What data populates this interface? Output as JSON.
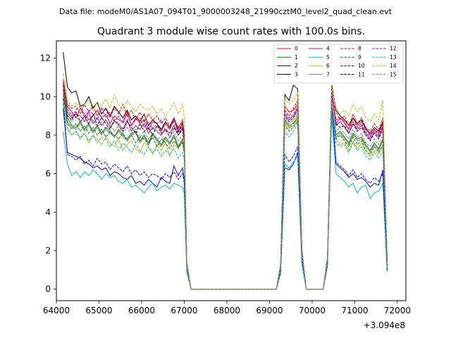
{
  "chart_data": {
    "type": "line",
    "subtitle": "Data file: modeM0/AS1A07_094T01_9000003248_21990cztM0_level2_quad_clean.evt",
    "title": "Quadrant 3 module wise count rates with 100.0s bins.",
    "xlabel": "",
    "ylabel": "",
    "x_offset_label": "+3.094e8",
    "xlim": [
      64000,
      72200
    ],
    "ylim": [
      -0.6,
      12.9
    ],
    "x_ticks": [
      64000,
      65000,
      66000,
      67000,
      68000,
      69000,
      70000,
      71000,
      72000
    ],
    "y_ticks": [
      0,
      2,
      4,
      6,
      8,
      10,
      12
    ],
    "grid": false,
    "legend": {
      "placement": "top-right",
      "columns": 4
    },
    "x": [
      64160,
      64260,
      64360,
      64460,
      64560,
      64660,
      64760,
      64860,
      64960,
      65060,
      65160,
      65260,
      65360,
      65460,
      65560,
      65660,
      65760,
      65860,
      65960,
      66060,
      66160,
      66260,
      66360,
      66460,
      66560,
      66660,
      66760,
      66860,
      66960,
      67000,
      67060,
      67160,
      69160,
      69260,
      69360,
      69460,
      69560,
      69660,
      69760,
      69860,
      70260,
      70360,
      70460,
      70560,
      70660,
      70760,
      70860,
      70960,
      71060,
      71160,
      71260,
      71360,
      71460,
      71560,
      71660,
      71760
    ],
    "series": [
      {
        "name": "0",
        "color": "#ff0000",
        "dash": "solid",
        "values": [
          10.9,
          9.5,
          9.2,
          8.9,
          9.4,
          9.1,
          8.8,
          9.0,
          9.3,
          8.9,
          9.1,
          8.6,
          9.0,
          8.8,
          8.7,
          9.2,
          8.5,
          8.9,
          8.6,
          8.8,
          8.3,
          8.7,
          8.6,
          8.2,
          8.6,
          8.3,
          8.8,
          8.4,
          8.7,
          8.0,
          1.3,
          0,
          0,
          1.2,
          9.5,
          9.2,
          9.3,
          9.6,
          2.0,
          0,
          0,
          1.6,
          10.2,
          8.6,
          8.9,
          8.7,
          8.3,
          8.9,
          8.5,
          8.7,
          8.4,
          8.0,
          8.3,
          8.1,
          8.6,
          1.5
        ]
      },
      {
        "name": "1",
        "color": "#008000",
        "dash": "solid",
        "values": [
          10.4,
          8.9,
          8.5,
          8.4,
          8.7,
          8.3,
          8.6,
          8.2,
          8.5,
          8.1,
          8.4,
          8.2,
          7.9,
          8.3,
          8.0,
          7.8,
          8.1,
          8.2,
          7.7,
          8.0,
          7.6,
          8.1,
          7.8,
          7.5,
          7.9,
          7.6,
          8.0,
          7.4,
          7.8,
          7.3,
          1.2,
          0,
          0,
          1.1,
          8.8,
          8.5,
          8.6,
          8.9,
          1.8,
          0,
          0,
          1.5,
          9.5,
          8.0,
          8.2,
          7.9,
          7.6,
          8.1,
          7.8,
          7.9,
          7.5,
          7.2,
          7.6,
          7.3,
          7.8,
          1.3
        ]
      },
      {
        "name": "2",
        "color": "#0000ff",
        "dash": "solid",
        "values": [
          9.4,
          7.1,
          7.0,
          6.9,
          6.8,
          6.6,
          6.5,
          6.3,
          6.4,
          6.2,
          6.3,
          5.9,
          6.1,
          6.0,
          5.8,
          5.7,
          5.9,
          5.5,
          5.6,
          5.4,
          5.7,
          5.5,
          5.3,
          5.8,
          5.6,
          5.5,
          6.4,
          5.9,
          6.3,
          5.7,
          1.0,
          0,
          0,
          0.9,
          6.3,
          6.2,
          6.5,
          7.1,
          1.5,
          0,
          0,
          1.3,
          9.4,
          6.5,
          6.3,
          6.1,
          5.8,
          6.0,
          5.7,
          5.8,
          5.6,
          5.3,
          5.5,
          5.4,
          6.2,
          1.0
        ]
      },
      {
        "name": "3",
        "color": "#000000",
        "dash": "solid",
        "values": [
          12.3,
          10.5,
          10.2,
          10.3,
          9.5,
          9.6,
          10.0,
          9.4,
          9.7,
          9.1,
          9.4,
          9.0,
          9.5,
          9.2,
          8.9,
          9.3,
          8.8,
          9.0,
          8.7,
          9.1,
          8.5,
          8.8,
          8.6,
          8.3,
          8.7,
          8.4,
          8.9,
          8.2,
          8.6,
          8.0,
          1.4,
          0,
          0,
          1.3,
          10.1,
          9.8,
          10.6,
          10.4,
          2.1,
          0,
          0,
          1.7,
          10.6,
          9.3,
          9.0,
          8.8,
          8.5,
          8.9,
          8.6,
          8.8,
          8.3,
          8.1,
          8.4,
          8.2,
          8.7,
          1.6
        ]
      },
      {
        "name": "4",
        "color": "#bf00bf",
        "dash": "solid",
        "values": [
          10.8,
          9.2,
          8.9,
          9.1,
          9.0,
          8.7,
          9.2,
          8.6,
          8.9,
          8.5,
          8.8,
          8.4,
          8.7,
          8.6,
          8.3,
          8.8,
          8.2,
          8.5,
          8.3,
          8.6,
          8.1,
          8.4,
          8.2,
          8.0,
          8.3,
          8.1,
          8.5,
          8.0,
          8.4,
          7.8,
          1.3,
          0,
          0,
          1.2,
          9.1,
          8.8,
          9.0,
          9.4,
          1.9,
          0,
          0,
          1.6,
          10.3,
          8.5,
          8.7,
          8.4,
          8.1,
          8.6,
          8.3,
          8.5,
          8.1,
          7.8,
          8.2,
          7.9,
          8.4,
          1.4
        ]
      },
      {
        "name": "5",
        "color": "#00bfbf",
        "dash": "solid",
        "values": [
          8.2,
          6.5,
          5.9,
          6.1,
          5.8,
          6.1,
          5.9,
          6.2,
          6.0,
          5.7,
          6.0,
          5.8,
          5.9,
          5.6,
          5.5,
          5.7,
          5.3,
          5.4,
          5.2,
          5.0,
          5.3,
          5.5,
          5.1,
          5.3,
          5.4,
          5.2,
          5.5,
          5.4,
          5.3,
          5.0,
          0.9,
          0,
          0,
          0.8,
          6.5,
          6.3,
          6.6,
          6.9,
          1.3,
          0,
          0,
          1.2,
          9.0,
          6.0,
          5.8,
          5.6,
          5.3,
          5.5,
          5.0,
          5.3,
          5.4,
          4.7,
          5.0,
          5.1,
          5.5,
          0.9
        ]
      },
      {
        "name": "6",
        "color": "#bfbf00",
        "dash": "solid",
        "values": [
          10.0,
          8.4,
          8.0,
          8.2,
          7.9,
          8.1,
          7.6,
          8.0,
          7.8,
          7.5,
          7.9,
          7.6,
          7.4,
          7.8,
          7.2,
          7.5,
          7.7,
          7.3,
          7.1,
          7.6,
          7.4,
          7.0,
          7.5,
          7.2,
          7.6,
          6.9,
          7.5,
          7.3,
          7.7,
          7.0,
          1.1,
          0,
          0,
          1.0,
          8.6,
          8.3,
          8.7,
          9.0,
          1.7,
          0,
          0,
          1.4,
          9.8,
          7.8,
          7.5,
          7.6,
          7.2,
          7.7,
          7.3,
          7.6,
          7.1,
          6.9,
          7.2,
          7.0,
          7.4,
          1.2
        ]
      },
      {
        "name": "7",
        "color": "#808080",
        "dash": "solid",
        "values": [
          10.2,
          8.7,
          8.4,
          8.3,
          8.6,
          8.2,
          8.5,
          8.1,
          8.4,
          8.0,
          8.3,
          8.1,
          7.9,
          8.2,
          7.9,
          7.7,
          8.0,
          8.1,
          7.6,
          7.9,
          7.5,
          8.0,
          7.7,
          7.4,
          7.8,
          7.5,
          7.9,
          7.3,
          7.7,
          7.2,
          1.2,
          0,
          0,
          1.1,
          8.7,
          8.4,
          8.5,
          8.8,
          1.8,
          0,
          0,
          1.5,
          9.6,
          7.9,
          8.1,
          7.8,
          7.5,
          8.0,
          7.7,
          7.8,
          7.4,
          7.1,
          7.5,
          7.2,
          7.7,
          1.3
        ]
      },
      {
        "name": "8",
        "color": "#ff0000",
        "dash": "dashed",
        "values": [
          10.7,
          9.6,
          9.4,
          9.5,
          9.1,
          9.6,
          9.2,
          9.5,
          9.0,
          9.4,
          9.3,
          8.9,
          9.4,
          9.1,
          9.6,
          9.0,
          9.3,
          8.8,
          9.2,
          8.7,
          9.1,
          8.8,
          9.0,
          8.6,
          8.9,
          8.5,
          8.9,
          8.3,
          8.8,
          8.1,
          1.3,
          0,
          0,
          1.2,
          9.3,
          9.0,
          9.4,
          9.8,
          2.0,
          0,
          0,
          1.6,
          10.0,
          9.2,
          8.8,
          9.0,
          8.5,
          9.1,
          8.6,
          8.9,
          8.4,
          8.2,
          8.6,
          8.3,
          8.9,
          1.5
        ]
      },
      {
        "name": "9",
        "color": "#008000",
        "dash": "dashed",
        "values": [
          10.1,
          8.6,
          8.3,
          8.6,
          8.2,
          8.5,
          8.1,
          8.4,
          8.0,
          8.3,
          7.9,
          8.2,
          8.0,
          7.8,
          8.1,
          7.7,
          8.0,
          7.6,
          7.9,
          7.8,
          7.5,
          7.9,
          7.4,
          7.8,
          7.6,
          7.3,
          7.7,
          7.4,
          7.6,
          7.1,
          1.2,
          0,
          0,
          1.1,
          8.5,
          8.2,
          8.4,
          8.7,
          1.7,
          0,
          0,
          1.4,
          9.4,
          7.8,
          8.0,
          7.7,
          7.4,
          7.9,
          7.5,
          7.7,
          7.2,
          7.0,
          7.4,
          7.1,
          7.5,
          1.2
        ]
      },
      {
        "name": "10",
        "color": "#0000ff",
        "dash": "dashed",
        "values": [
          9.9,
          7.0,
          6.9,
          6.7,
          6.9,
          6.5,
          6.7,
          6.4,
          6.8,
          6.5,
          6.6,
          6.2,
          6.5,
          6.3,
          6.1,
          6.4,
          6.0,
          6.2,
          5.9,
          6.1,
          5.8,
          6.0,
          5.9,
          5.7,
          6.0,
          5.8,
          6.1,
          5.7,
          6.0,
          5.5,
          1.0,
          0,
          0,
          0.9,
          7.0,
          6.6,
          6.9,
          7.4,
          1.5,
          0,
          0,
          1.3,
          9.9,
          6.6,
          6.4,
          6.2,
          5.9,
          6.2,
          5.8,
          6.0,
          5.7,
          5.5,
          5.8,
          5.6,
          6.0,
          1.0
        ]
      },
      {
        "name": "11",
        "color": "#000000",
        "dash": "dashed",
        "values": [
          10.6,
          9.0,
          8.8,
          9.2,
          8.7,
          9.0,
          8.6,
          9.1,
          8.5,
          8.9,
          8.6,
          8.3,
          8.8,
          8.5,
          8.2,
          8.7,
          8.4,
          8.1,
          8.6,
          8.2,
          8.4,
          8.0,
          8.5,
          8.1,
          8.3,
          7.9,
          8.4,
          8.0,
          8.3,
          7.7,
          1.3,
          0,
          0,
          1.2,
          9.0,
          8.7,
          8.9,
          9.3,
          1.9,
          0,
          0,
          1.5,
          10.2,
          8.6,
          8.4,
          8.5,
          8.1,
          8.6,
          8.2,
          8.4,
          8.0,
          7.7,
          8.1,
          7.8,
          8.3,
          1.4
        ]
      },
      {
        "name": "12",
        "color": "#bf00bf",
        "dash": "dashed",
        "values": [
          10.3,
          9.4,
          9.0,
          9.3,
          9.5,
          8.9,
          9.3,
          9.1,
          8.8,
          9.4,
          8.9,
          9.2,
          8.7,
          9.0,
          8.6,
          9.1,
          8.5,
          8.8,
          8.9,
          8.4,
          8.7,
          8.3,
          8.6,
          8.8,
          8.2,
          8.5,
          8.7,
          8.1,
          8.5,
          7.9,
          1.3,
          0,
          0,
          1.2,
          9.2,
          8.9,
          9.1,
          9.5,
          1.9,
          0,
          0,
          1.6,
          10.1,
          8.8,
          8.9,
          8.6,
          8.3,
          8.7,
          8.4,
          8.6,
          8.2,
          7.9,
          8.3,
          8.0,
          8.5,
          1.4
        ]
      },
      {
        "name": "13",
        "color": "#00bfbf",
        "dash": "dashed",
        "values": [
          9.6,
          8.3,
          8.0,
          8.2,
          7.8,
          8.1,
          7.7,
          8.0,
          7.6,
          7.9,
          7.8,
          7.4,
          7.7,
          7.2,
          7.6,
          7.4,
          7.1,
          7.5,
          7.2,
          7.0,
          7.4,
          7.1,
          7.3,
          6.9,
          7.2,
          7.0,
          7.3,
          6.8,
          7.1,
          6.7,
          1.1,
          0,
          0,
          1.0,
          8.2,
          7.9,
          8.2,
          8.6,
          1.6,
          0,
          0,
          1.4,
          9.3,
          7.6,
          7.4,
          7.5,
          7.1,
          7.6,
          7.2,
          7.4,
          6.9,
          6.7,
          7.1,
          6.8,
          7.2,
          1.1
        ]
      },
      {
        "name": "14",
        "color": "#bfbf00",
        "dash": "dashed",
        "values": [
          11.2,
          9.8,
          9.5,
          9.7,
          9.4,
          9.6,
          9.8,
          9.3,
          9.7,
          9.5,
          9.9,
          9.4,
          10.1,
          9.6,
          9.3,
          9.8,
          9.5,
          9.2,
          9.6,
          9.4,
          9.3,
          9.5,
          9.1,
          9.4,
          9.0,
          9.3,
          9.7,
          9.1,
          9.6,
          8.9,
          1.4,
          0,
          0,
          1.3,
          9.9,
          9.6,
          9.8,
          10.2,
          2.1,
          0,
          0,
          1.7,
          10.5,
          9.4,
          9.1,
          9.3,
          9.0,
          9.6,
          9.2,
          9.5,
          8.9,
          8.7,
          9.1,
          8.8,
          9.8,
          1.6
        ]
      },
      {
        "name": "15",
        "color": "#808080",
        "dash": "dashed",
        "values": [
          10.5,
          9.1,
          8.7,
          9.0,
          8.6,
          8.9,
          8.5,
          8.8,
          8.4,
          8.7,
          8.3,
          8.6,
          8.2,
          8.5,
          8.1,
          8.4,
          8.0,
          8.3,
          7.9,
          8.2,
          7.8,
          8.1,
          7.7,
          8.0,
          7.6,
          7.9,
          8.2,
          7.7,
          8.0,
          7.5,
          1.2,
          0,
          0,
          1.1,
          8.9,
          8.6,
          8.8,
          9.1,
          1.8,
          0,
          0,
          1.5,
          9.7,
          8.2,
          8.4,
          8.1,
          7.8,
          8.3,
          7.9,
          8.1,
          7.6,
          7.4,
          7.8,
          7.5,
          8.0,
          1.3
        ]
      }
    ]
  }
}
